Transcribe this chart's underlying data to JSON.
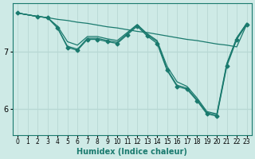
{
  "xlabel": "Humidex (Indice chaleur)",
  "ylabel": "",
  "bg_color": "#ceeae6",
  "grid_color": "#b8d8d4",
  "line_color": "#1a7a6e",
  "marker": "D",
  "marker_size": 2.5,
  "xlim": [
    -0.5,
    23.5
  ],
  "ylim": [
    5.55,
    7.85
  ],
  "yticks": [
    6,
    7
  ],
  "xticks": [
    0,
    1,
    2,
    3,
    4,
    5,
    6,
    7,
    8,
    9,
    10,
    11,
    12,
    13,
    14,
    15,
    16,
    17,
    18,
    19,
    20,
    21,
    22,
    23
  ],
  "lines": [
    {
      "x": [
        0,
        1,
        2,
        3,
        4,
        5,
        6,
        7,
        8,
        9,
        10,
        11,
        12,
        13,
        14,
        15,
        16,
        17,
        18,
        19,
        20,
        21,
        22,
        23
      ],
      "y": [
        7.68,
        7.65,
        7.62,
        7.6,
        7.57,
        7.55,
        7.52,
        7.5,
        7.47,
        7.44,
        7.42,
        7.39,
        7.36,
        7.34,
        7.31,
        7.28,
        7.25,
        7.22,
        7.2,
        7.17,
        7.14,
        7.12,
        7.09,
        7.48
      ],
      "has_markers": false
    },
    {
      "x": [
        0,
        2,
        3,
        4,
        5,
        6,
        7,
        8,
        9,
        10,
        11,
        12,
        13,
        14,
        15,
        16,
        17,
        18,
        19,
        20,
        21,
        22,
        23
      ],
      "y": [
        7.68,
        7.62,
        7.6,
        7.42,
        7.08,
        7.03,
        7.22,
        7.22,
        7.18,
        7.15,
        7.3,
        7.45,
        7.28,
        7.15,
        6.68,
        6.4,
        6.35,
        6.15,
        5.92,
        5.88,
        6.75,
        7.22,
        7.48
      ],
      "has_markers": true
    },
    {
      "x": [
        0,
        2,
        3,
        4,
        5,
        6,
        7,
        8,
        9,
        10,
        11,
        12,
        13,
        14,
        15,
        16,
        17,
        18,
        19,
        20,
        21,
        22,
        23
      ],
      "y": [
        7.68,
        7.62,
        7.6,
        7.42,
        7.1,
        7.05,
        7.24,
        7.24,
        7.2,
        7.17,
        7.32,
        7.47,
        7.3,
        7.18,
        6.7,
        6.42,
        6.37,
        6.17,
        5.94,
        5.9,
        6.78,
        7.24,
        7.5
      ],
      "has_markers": false
    },
    {
      "x": [
        0,
        2,
        3,
        4,
        5,
        6,
        7,
        8,
        9,
        10,
        11,
        12,
        13,
        14,
        15,
        16,
        17,
        18,
        19,
        20,
        21,
        22,
        23
      ],
      "y": [
        7.68,
        7.62,
        7.6,
        7.45,
        7.18,
        7.12,
        7.27,
        7.27,
        7.23,
        7.2,
        7.34,
        7.48,
        7.32,
        7.2,
        6.75,
        6.48,
        6.4,
        6.2,
        5.96,
        5.92,
        6.8,
        7.25,
        7.5
      ],
      "has_markers": false
    }
  ]
}
